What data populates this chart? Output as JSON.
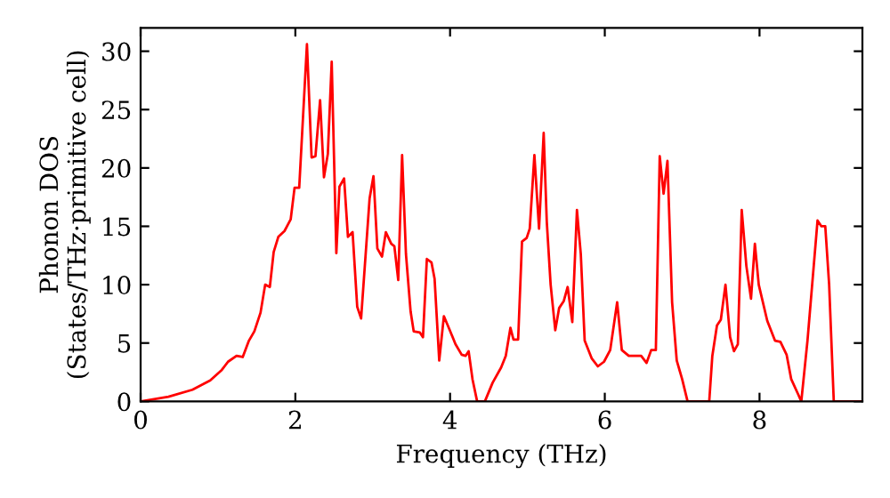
{
  "chart_data": {
    "type": "line",
    "xlabel": "Frequency (THz)",
    "ylabel": "Phonon DOS\n(States/THz·primitive cell)",
    "xlim": [
      0,
      9.33
    ],
    "ylim": [
      0,
      32
    ],
    "xticks": [
      0,
      2,
      4,
      6,
      8
    ],
    "yticks": [
      0,
      5,
      10,
      15,
      20,
      25,
      30
    ],
    "grid": false,
    "legend": false,
    "marker": "none",
    "line_style": "solid",
    "series": [
      {
        "color": "#ff0000",
        "x": [
          0,
          0.36,
          0.67,
          0.9,
          1.05,
          1.13,
          1.24,
          1.32,
          1.4,
          1.47,
          1.55,
          1.61,
          1.67,
          1.72,
          1.78,
          1.86,
          1.94,
          1.99,
          2.05,
          2.15,
          2.21,
          2.26,
          2.32,
          2.37,
          2.42,
          2.47,
          2.53,
          2.57,
          2.63,
          2.68,
          2.74,
          2.8,
          2.85,
          2.96,
          3.01,
          3.06,
          3.12,
          3.17,
          3.24,
          3.28,
          3.33,
          3.38,
          3.43,
          3.49,
          3.53,
          3.61,
          3.65,
          3.7,
          3.76,
          3.8,
          3.86,
          3.92,
          3.99,
          4.07,
          4.15,
          4.2,
          4.24,
          4.29,
          4.35,
          4.45,
          4.55,
          4.66,
          4.72,
          4.78,
          4.82,
          4.88,
          4.93,
          4.99,
          5.03,
          5.09,
          5.15,
          5.21,
          5.25,
          5.3,
          5.36,
          5.41,
          5.47,
          5.52,
          5.58,
          5.64,
          5.69,
          5.74,
          5.83,
          5.91,
          5.99,
          6.07,
          6.16,
          6.22,
          6.31,
          6.47,
          6.54,
          6.6,
          6.66,
          6.71,
          6.76,
          6.81,
          6.87,
          6.93,
          7.0,
          7.07,
          7.35,
          7.39,
          7.45,
          7.5,
          7.56,
          7.62,
          7.67,
          7.72,
          7.77,
          7.83,
          7.89,
          7.94,
          7.99,
          8.1,
          8.2,
          8.27,
          8.35,
          8.41,
          8.5,
          8.54,
          8.62,
          8.75,
          8.8,
          8.85,
          8.9,
          8.96,
          9.33
        ],
        "values": [
          0,
          0.4,
          1.0,
          1.8,
          2.7,
          3.4,
          3.9,
          3.8,
          5.2,
          6.0,
          7.6,
          10.0,
          9.8,
          12.8,
          14.1,
          14.6,
          15.6,
          18.3,
          18.3,
          30.6,
          20.9,
          21.0,
          25.8,
          19.2,
          21.2,
          29.1,
          12.7,
          18.4,
          19.1,
          14.1,
          14.5,
          8.1,
          7.1,
          17.4,
          19.3,
          13.1,
          12.4,
          14.5,
          13.5,
          13.3,
          10.4,
          21.1,
          12.6,
          7.7,
          6.0,
          5.9,
          5.5,
          12.2,
          11.9,
          10.5,
          3.5,
          7.3,
          6.2,
          4.9,
          4.0,
          3.9,
          4.3,
          1.9,
          0,
          0,
          1.6,
          2.9,
          3.9,
          6.3,
          5.3,
          5.3,
          13.7,
          14.0,
          14.8,
          21.1,
          14.8,
          23.0,
          15.4,
          10.0,
          6.1,
          8.0,
          8.6,
          9.8,
          6.8,
          16.4,
          12.6,
          5.2,
          3.7,
          3.0,
          3.4,
          4.4,
          8.5,
          4.4,
          3.9,
          3.9,
          3.3,
          4.4,
          4.4,
          21.0,
          17.8,
          20.6,
          8.5,
          3.5,
          1.9,
          0,
          0,
          3.9,
          6.5,
          7.0,
          10.0,
          5.5,
          4.3,
          4.9,
          16.4,
          11.6,
          8.8,
          13.5,
          10.0,
          6.9,
          5.2,
          5.1,
          4.0,
          1.9,
          0.6,
          0,
          5.2,
          15.5,
          15.0,
          15.0,
          10.0,
          0,
          0
        ]
      }
    ]
  }
}
